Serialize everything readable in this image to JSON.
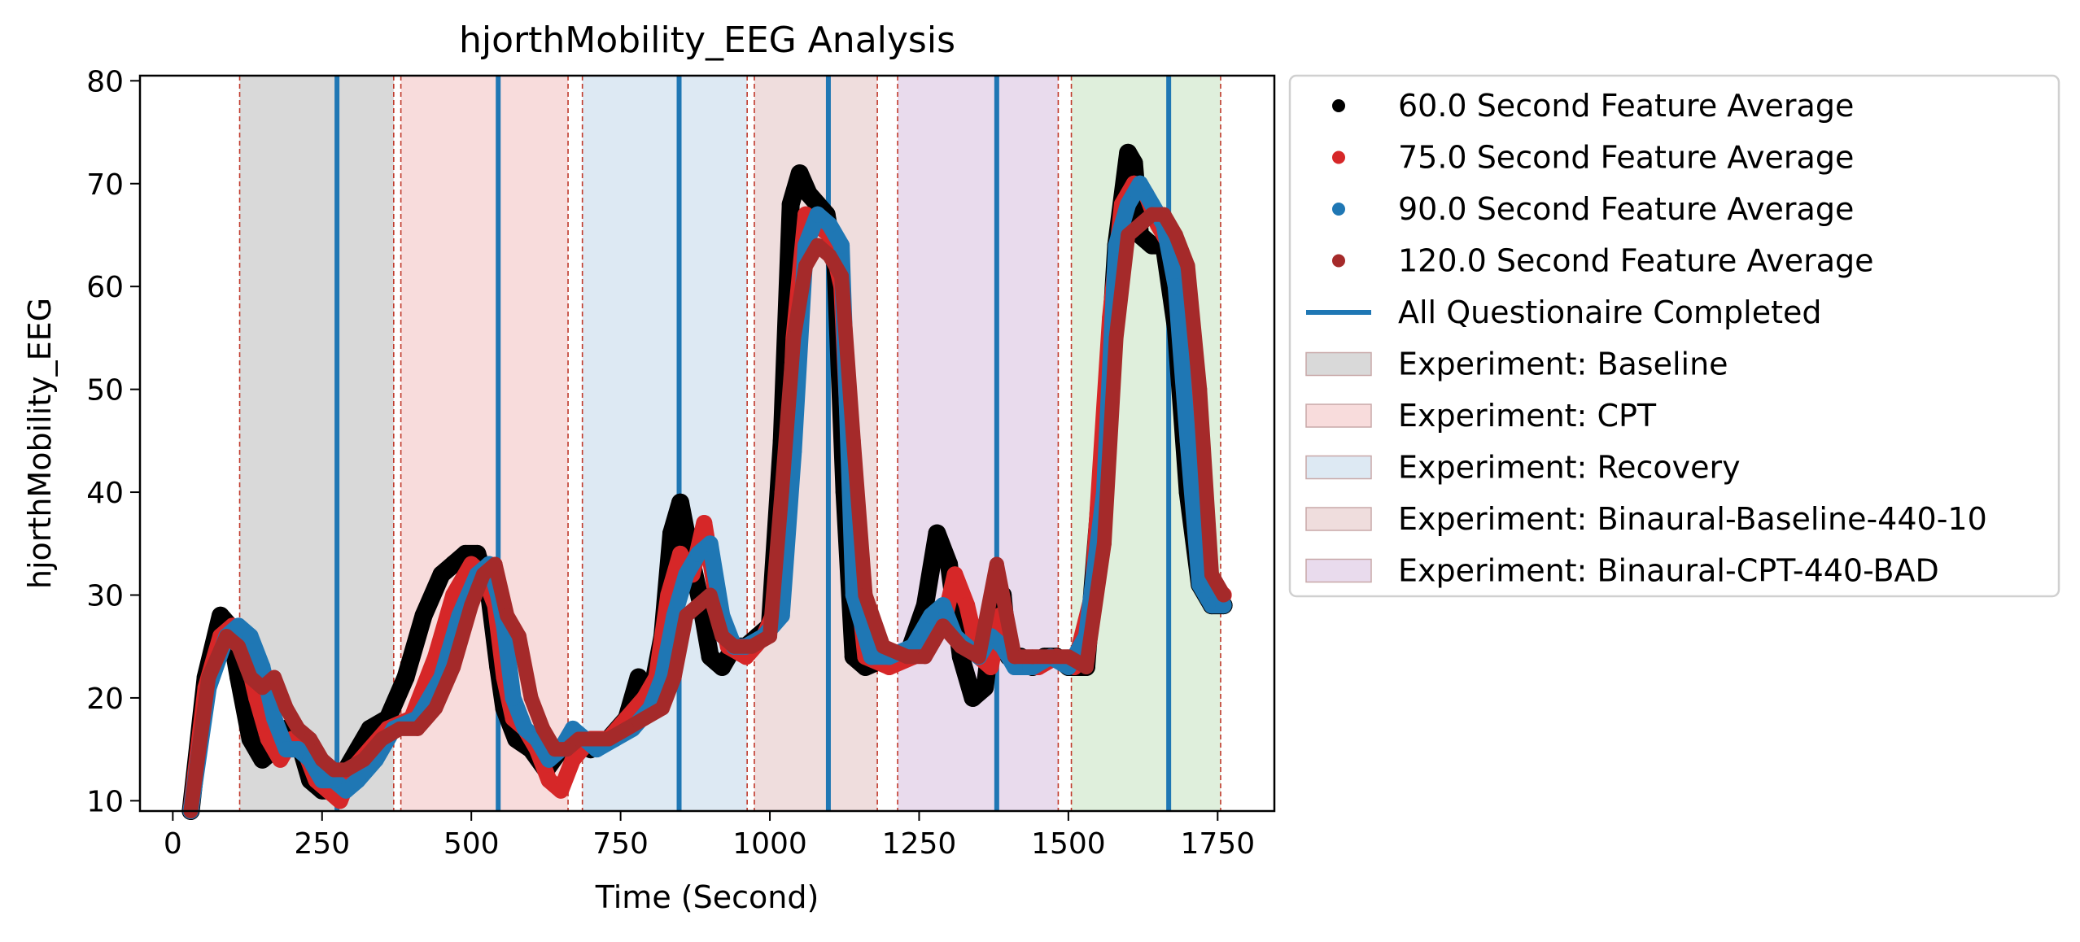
{
  "chart_data": {
    "type": "line",
    "title": "hjorthMobility_EEG Analysis",
    "xlabel": "Time (Second)",
    "ylabel": "hjorthMobility_EEG",
    "xlim": [
      -55,
      1845
    ],
    "ylim": [
      9,
      80.5
    ],
    "xticks": [
      0,
      250,
      500,
      750,
      1000,
      1250,
      1500,
      1750
    ],
    "yticks": [
      10,
      20,
      30,
      40,
      50,
      60,
      70,
      80
    ],
    "grid": false,
    "legend_position": "outside-right",
    "colors": {
      "s60": "#000000",
      "s75": "#d62728",
      "s90": "#1f77b4",
      "s120": "#a52a2a",
      "questionnaire": "#1f77b4",
      "boundary": "#c0392b"
    },
    "series": [
      {
        "name": "60.0 Second Feature Average",
        "color": "#000000",
        "x": [
          30,
          55,
          80,
          95,
          110,
          130,
          150,
          170,
          190,
          210,
          230,
          250,
          270,
          290,
          310,
          330,
          360,
          390,
          420,
          450,
          470,
          490,
          510,
          530,
          545,
          555,
          575,
          600,
          625,
          650,
          670,
          700,
          730,
          760,
          780,
          800,
          820,
          835,
          850,
          870,
          885,
          900,
          920,
          940,
          960,
          980,
          1000,
          1020,
          1035,
          1050,
          1065,
          1080,
          1095,
          1110,
          1125,
          1140,
          1160,
          1200,
          1230,
          1260,
          1280,
          1300,
          1320,
          1340,
          1360,
          1375,
          1390,
          1400,
          1420,
          1440,
          1460,
          1480,
          1500,
          1530,
          1560,
          1580,
          1600,
          1610,
          1620,
          1640,
          1660,
          1680,
          1700,
          1720,
          1740,
          1760
        ],
        "y": [
          9,
          22,
          28,
          27,
          22,
          16,
          14,
          15,
          17,
          16,
          12,
          11,
          11,
          13,
          15,
          17,
          18,
          22,
          28,
          32,
          33,
          34,
          34,
          30,
          23,
          19,
          16,
          15,
          13,
          15,
          16,
          15,
          16,
          18,
          22,
          20,
          26,
          36,
          39,
          33,
          29,
          24,
          23,
          25,
          25,
          26,
          27,
          45,
          68,
          71,
          69,
          68,
          67,
          62,
          40,
          24,
          23,
          24,
          24,
          29,
          36,
          33,
          24,
          20,
          21,
          28,
          30,
          24,
          24,
          23,
          24,
          24,
          23,
          23,
          45,
          64,
          73,
          72,
          65,
          64,
          64,
          56,
          40,
          31,
          29,
          29
        ]
      },
      {
        "name": "75.0 Second Feature Average",
        "color": "#d62728",
        "x": [
          30,
          55,
          80,
          100,
          120,
          140,
          160,
          180,
          200,
          220,
          240,
          260,
          280,
          300,
          330,
          360,
          400,
          440,
          470,
          500,
          520,
          540,
          555,
          570,
          590,
          610,
          630,
          650,
          670,
          700,
          730,
          760,
          790,
          810,
          830,
          850,
          870,
          890,
          910,
          930,
          960,
          990,
          1020,
          1040,
          1060,
          1080,
          1100,
          1120,
          1140,
          1160,
          1200,
          1240,
          1270,
          1290,
          1310,
          1330,
          1350,
          1370,
          1385,
          1400,
          1420,
          1450,
          1480,
          1510,
          1540,
          1570,
          1590,
          1610,
          1630,
          1650,
          1670,
          1690,
          1710,
          1730,
          1750,
          1760
        ],
        "y": [
          9,
          21,
          26,
          27,
          25,
          20,
          16,
          14,
          16,
          15,
          12,
          11,
          10,
          13,
          15,
          17,
          18,
          24,
          30,
          33,
          32,
          29,
          22,
          18,
          17,
          15,
          12,
          11,
          14,
          16,
          16,
          18,
          20,
          22,
          30,
          34,
          32,
          37,
          30,
          25,
          24,
          26,
          30,
          55,
          67,
          66,
          65,
          60,
          35,
          24,
          23,
          24,
          26,
          27,
          32,
          29,
          24,
          23,
          28,
          24,
          23,
          23,
          24,
          23,
          30,
          57,
          68,
          70,
          69,
          66,
          64,
          60,
          45,
          32,
          30,
          30
        ]
      },
      {
        "name": "90.0 Second Feature Average",
        "color": "#1f77b4",
        "x": [
          30,
          60,
          90,
          110,
          130,
          150,
          170,
          190,
          210,
          230,
          250,
          270,
          290,
          310,
          340,
          370,
          410,
          450,
          480,
          510,
          530,
          545,
          555,
          570,
          590,
          610,
          630,
          650,
          670,
          690,
          710,
          740,
          770,
          800,
          820,
          840,
          860,
          880,
          900,
          920,
          940,
          960,
          990,
          1020,
          1040,
          1060,
          1080,
          1100,
          1120,
          1140,
          1170,
          1200,
          1240,
          1270,
          1290,
          1310,
          1330,
          1350,
          1370,
          1390,
          1410,
          1440,
          1470,
          1500,
          1530,
          1560,
          1580,
          1600,
          1620,
          1640,
          1660,
          1680,
          1700,
          1720,
          1740,
          1760
        ],
        "y": [
          9,
          21,
          26,
          27,
          26,
          23,
          18,
          15,
          15,
          14,
          12,
          12,
          11,
          12,
          14,
          17,
          18,
          22,
          28,
          32,
          33,
          30,
          27,
          20,
          17,
          16,
          14,
          15,
          17,
          16,
          15,
          16,
          17,
          19,
          22,
          28,
          32,
          34,
          35,
          28,
          25,
          25,
          26,
          28,
          44,
          64,
          67,
          66,
          64,
          30,
          24,
          24,
          25,
          28,
          29,
          26,
          25,
          24,
          26,
          25,
          23,
          23,
          24,
          23,
          26,
          40,
          64,
          68,
          70,
          68,
          66,
          60,
          45,
          31,
          29,
          29
        ]
      },
      {
        "name": "120.0 Second Feature Average",
        "color": "#a52a2a",
        "x": [
          30,
          60,
          90,
          110,
          130,
          150,
          170,
          190,
          210,
          230,
          250,
          270,
          290,
          320,
          350,
          380,
          410,
          440,
          470,
          500,
          520,
          540,
          560,
          580,
          600,
          620,
          640,
          660,
          680,
          700,
          730,
          760,
          790,
          820,
          840,
          860,
          880,
          900,
          920,
          940,
          970,
          1000,
          1020,
          1040,
          1060,
          1080,
          1100,
          1120,
          1140,
          1160,
          1190,
          1230,
          1260,
          1290,
          1320,
          1350,
          1380,
          1410,
          1440,
          1470,
          1500,
          1530,
          1560,
          1580,
          1600,
          1620,
          1640,
          1660,
          1680,
          1700,
          1720,
          1740,
          1760
        ],
        "y": [
          9,
          22,
          26,
          25,
          22,
          21,
          22,
          19,
          17,
          16,
          14,
          13,
          13,
          14,
          16,
          17,
          17,
          19,
          23,
          29,
          32,
          33,
          28,
          26,
          20,
          17,
          15,
          15,
          16,
          16,
          16,
          17,
          18,
          19,
          22,
          28,
          29,
          30,
          26,
          25,
          25,
          26,
          40,
          55,
          62,
          64,
          63,
          61,
          45,
          30,
          25,
          24,
          24,
          27,
          25,
          24,
          33,
          24,
          24,
          24,
          24,
          23,
          35,
          55,
          65,
          66,
          67,
          67,
          65,
          62,
          50,
          32,
          30
        ]
      }
    ],
    "questionnaire_lines": {
      "label": "All Questionaire Completed",
      "x": [
        275,
        545,
        848,
        1098,
        1380,
        1668
      ]
    },
    "boundaries_x": [
      112,
      370,
      382,
      662,
      686,
      962,
      974,
      1180,
      1214,
      1483,
      1505,
      1755
    ],
    "experiments": [
      {
        "label": "Experiment: Baseline",
        "start": 112,
        "end": 370,
        "color": "#d9d9d9",
        "in_legend": true
      },
      {
        "label": "Experiment: CPT",
        "start": 382,
        "end": 662,
        "color": "#f8dcdc",
        "in_legend": true
      },
      {
        "label": "Experiment: Recovery",
        "start": 686,
        "end": 962,
        "color": "#dde9f3",
        "in_legend": true
      },
      {
        "label": "Experiment: Binaural-Baseline-440-10",
        "start": 974,
        "end": 1180,
        "color": "#efdddd",
        "in_legend": true
      },
      {
        "label": "Experiment: Binaural-CPT-440-BAD",
        "start": 1214,
        "end": 1483,
        "color": "#e9dbed",
        "in_legend": true
      },
      {
        "label": "",
        "start": 1505,
        "end": 1755,
        "color": "#dfefdc",
        "in_legend": false
      }
    ]
  }
}
